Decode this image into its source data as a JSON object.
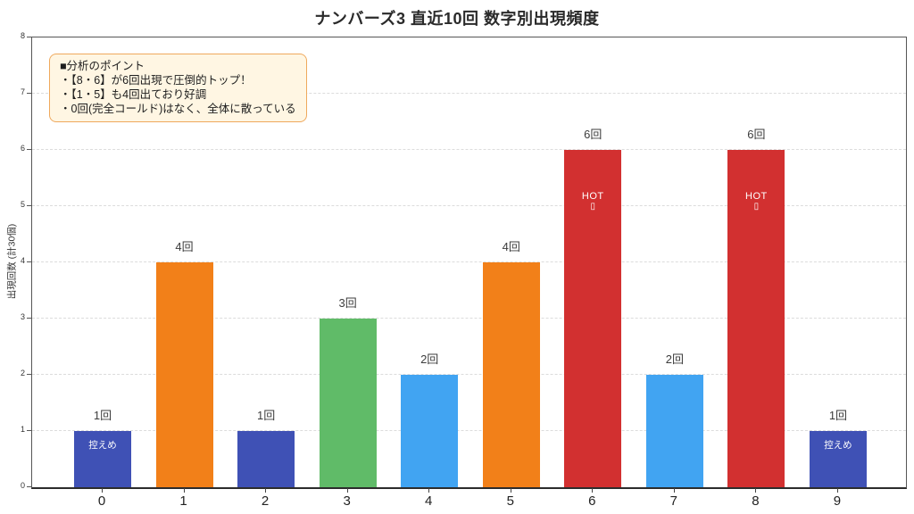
{
  "title": "ナンバーズ3 直近10回 数字別出現頻度",
  "annotation": {
    "heading": "■分析のポイント",
    "lines": [
      "・【8・6】が6回出現で圧倒的トップ！",
      "・【1・5】も4回出ており好調",
      "・0回(完全コールド)はなく、全体に散っている"
    ]
  },
  "axes": {
    "y_ticks": [
      0,
      1,
      2,
      3,
      4,
      5,
      6,
      7,
      8
    ]
  },
  "chart_data": {
    "type": "bar",
    "title": "ナンバーズ3 直近10回 数字別出現頻度",
    "xlabel": "",
    "ylabel": "出現回数 (計30個)",
    "ylim": [
      0,
      8
    ],
    "grid": true,
    "categories": [
      "0",
      "1",
      "2",
      "3",
      "4",
      "5",
      "6",
      "7",
      "8",
      "9"
    ],
    "values": [
      1,
      4,
      1,
      3,
      2,
      4,
      6,
      2,
      6,
      1
    ],
    "bar_value_labels": [
      "1回",
      "4回",
      "1回",
      "3回",
      "2回",
      "4回",
      "6回",
      "2回",
      "6回",
      "1回"
    ],
    "bar_colors": [
      "#3F51B5",
      "#F28019",
      "#3F51B5",
      "#60BB68",
      "#41A4F2",
      "#F28019",
      "#D23030",
      "#41A4F2",
      "#D23030",
      "#3F51B5"
    ],
    "inner_labels": [
      [
        "控えめ"
      ],
      [],
      [],
      [],
      [],
      [],
      [
        "HOT",
        "▯"
      ],
      [],
      [
        "HOT",
        "▯"
      ],
      [
        "控えめ"
      ]
    ]
  },
  "colors": {
    "hot_bar": "#D23030",
    "four_bar": "#F28019",
    "three_bar": "#60BB68",
    "two_bar": "#41A4F2",
    "cold_bar": "#3F51B5",
    "annotation_bg": "#FFF6E3",
    "annotation_border": "#EFA95D",
    "gridline": "#DCDCDC"
  }
}
